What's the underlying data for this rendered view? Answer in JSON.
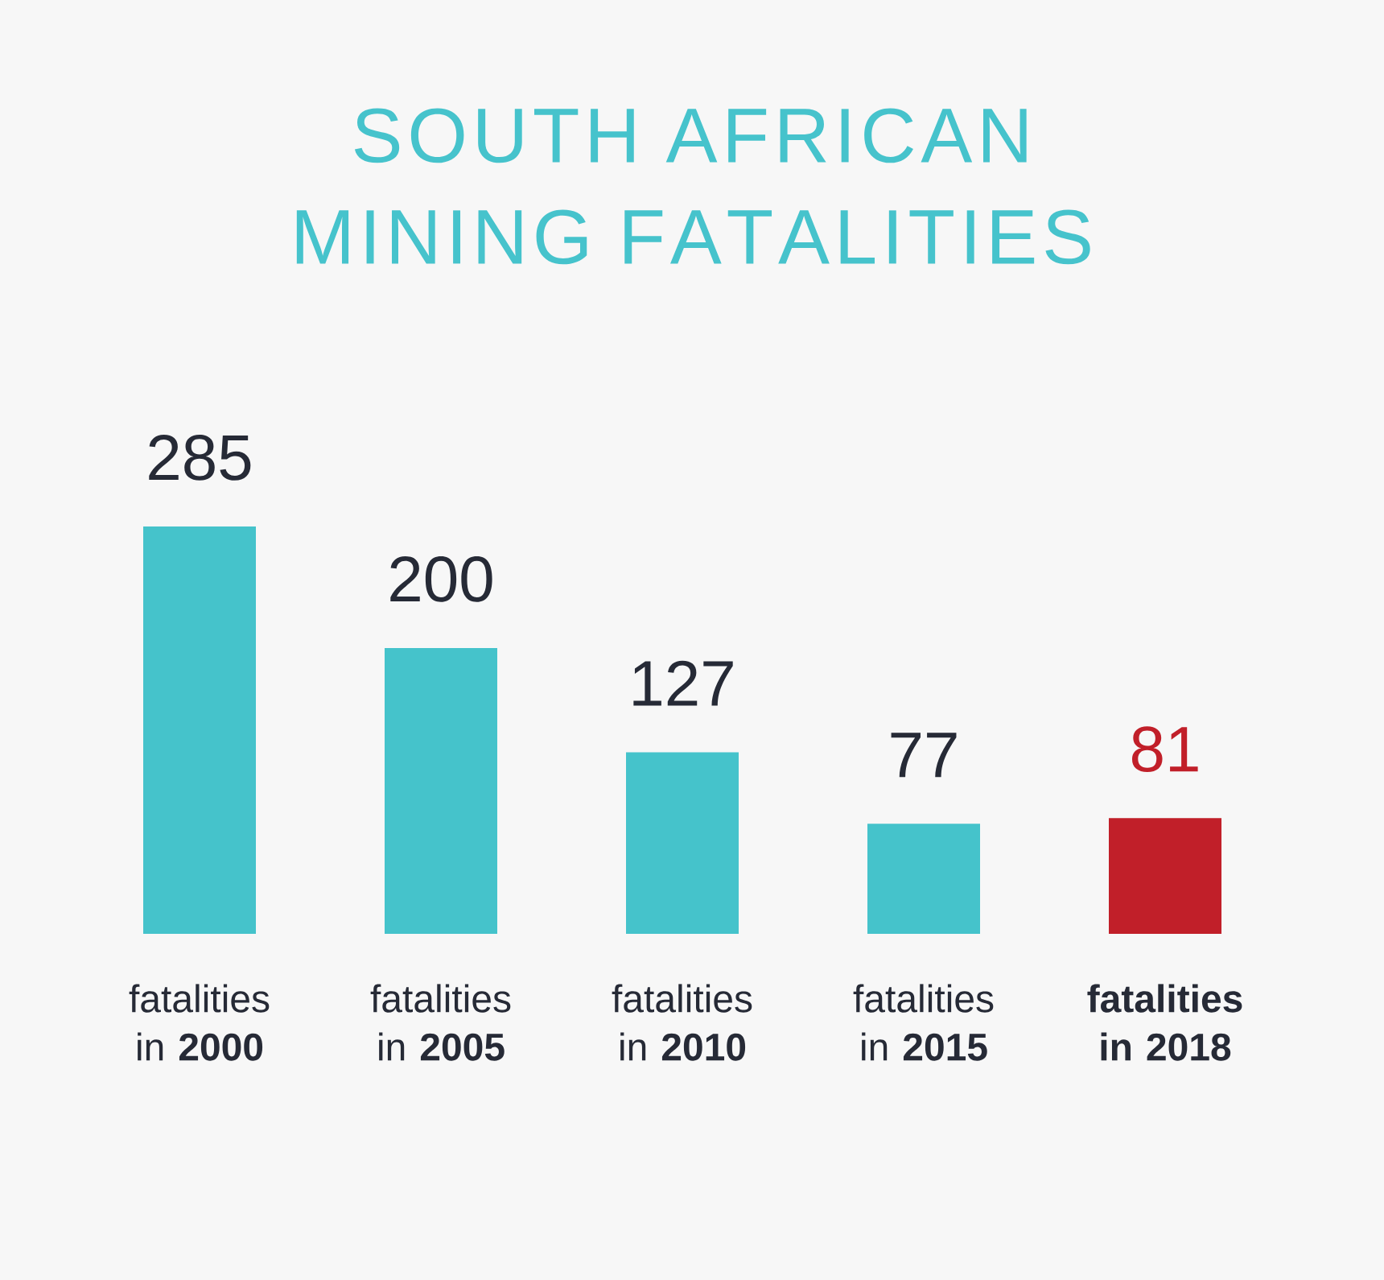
{
  "chart_data": {
    "type": "bar",
    "title": "SOUTH AFRICAN MINING FATALITIES",
    "categories": [
      "fatalities in **2000**",
      "fatalities in **2005**",
      "fatalities in **2010**",
      "fatalities in **2015**",
      "**fatalities in 2018**"
    ],
    "values": [
      285,
      200,
      127,
      77,
      81
    ],
    "colors": [
      "#45c3cb",
      "#45c3cb",
      "#45c3cb",
      "#45c3cb",
      "#c11f29"
    ],
    "data_labels": true
  }
}
